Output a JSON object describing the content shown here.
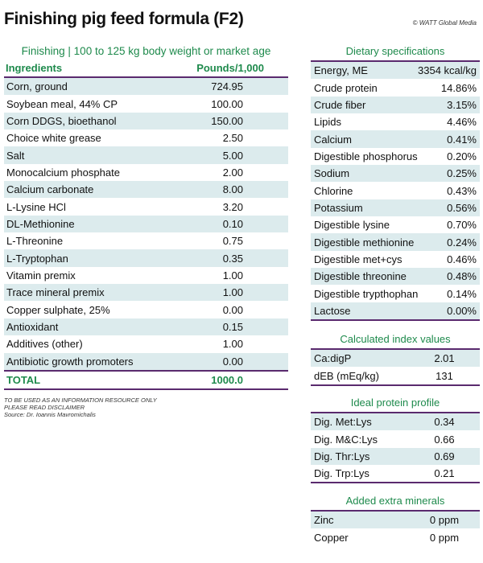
{
  "title": "Finishing pig feed formula (F2)",
  "credit": "© WATT Global Media",
  "formula": {
    "subtitle": "Finishing | 100 to 125 kg body weight or market age",
    "col_ingredient": "Ingredients",
    "col_amount": "Pounds/1,000",
    "rows": [
      {
        "name": "Corn, ground",
        "value": "724.95"
      },
      {
        "name": "Soybean meal, 44% CP",
        "value": "100.00"
      },
      {
        "name": "Corn DDGS, bioethanol",
        "value": "150.00"
      },
      {
        "name": "Choice white grease",
        "value": "2.50"
      },
      {
        "name": "Salt",
        "value": "5.00"
      },
      {
        "name": "Monocalcium phosphate",
        "value": "2.00"
      },
      {
        "name": "Calcium carbonate",
        "value": "8.00"
      },
      {
        "name": "L-Lysine HCl",
        "value": "3.20"
      },
      {
        "name": "DL-Methionine",
        "value": "0.10"
      },
      {
        "name": "L-Threonine",
        "value": "0.75"
      },
      {
        "name": "L-Tryptophan",
        "value": "0.35"
      },
      {
        "name": "Vitamin premix",
        "value": "1.00"
      },
      {
        "name": "Trace mineral premix",
        "value": "1.00"
      },
      {
        "name": "Copper sulphate, 25%",
        "value": "0.00"
      },
      {
        "name": "Antioxidant",
        "value": "0.15"
      },
      {
        "name": "Additives (other)",
        "value": "1.00"
      },
      {
        "name": "Antibiotic growth promoters",
        "value": "0.00"
      }
    ],
    "total_label": "TOTAL",
    "total_value": "1000.0",
    "notes": [
      "TO BE USED AS AN INFORMATION RESOURCE ONLY",
      "PLEASE READ DISCLAIMER",
      "Source: Dr. Ioannis Mavromichalis"
    ]
  },
  "dietary": {
    "title": "Dietary specifications",
    "rows": [
      {
        "name": "Energy, ME",
        "value": "3354 kcal/kg"
      },
      {
        "name": "Crude protein",
        "value": "14.86%"
      },
      {
        "name": "Crude fiber",
        "value": "3.15%"
      },
      {
        "name": "Lipids",
        "value": "4.46%"
      },
      {
        "name": "Calcium",
        "value": "0.41%"
      },
      {
        "name": "Digestible phosphorus",
        "value": "0.20%"
      },
      {
        "name": "Sodium",
        "value": "0.25%"
      },
      {
        "name": "Chlorine",
        "value": "0.43%"
      },
      {
        "name": "Potassium",
        "value": "0.56%"
      },
      {
        "name": "Digestible lysine",
        "value": "0.70%"
      },
      {
        "name": "Digestible methionine",
        "value": "0.24%"
      },
      {
        "name": "Digestible met+cys",
        "value": "0.46%"
      },
      {
        "name": "Digestible threonine",
        "value": "0.48%"
      },
      {
        "name": "Digestible trypthophan",
        "value": "0.14%"
      },
      {
        "name": "Lactose",
        "value": "0.00%"
      }
    ]
  },
  "index": {
    "title": "Calculated index values",
    "rows": [
      {
        "name": "Ca:digP",
        "value": "2.01"
      },
      {
        "name": "dEB (mEq/kg)",
        "value": "131"
      }
    ]
  },
  "protein": {
    "title": "Ideal protein profile",
    "rows": [
      {
        "name": "Dig. Met:Lys",
        "value": "0.34"
      },
      {
        "name": "Dig. M&C:Lys",
        "value": "0.66"
      },
      {
        "name": "Dig. Thr:Lys",
        "value": "0.69"
      },
      {
        "name": "Dig. Trp:Lys",
        "value": "0.21"
      }
    ]
  },
  "minerals": {
    "title": "Added extra minerals",
    "rows": [
      {
        "name": "Zinc",
        "value": "0 ppm"
      },
      {
        "name": "Copper",
        "value": "0 ppm"
      }
    ]
  }
}
